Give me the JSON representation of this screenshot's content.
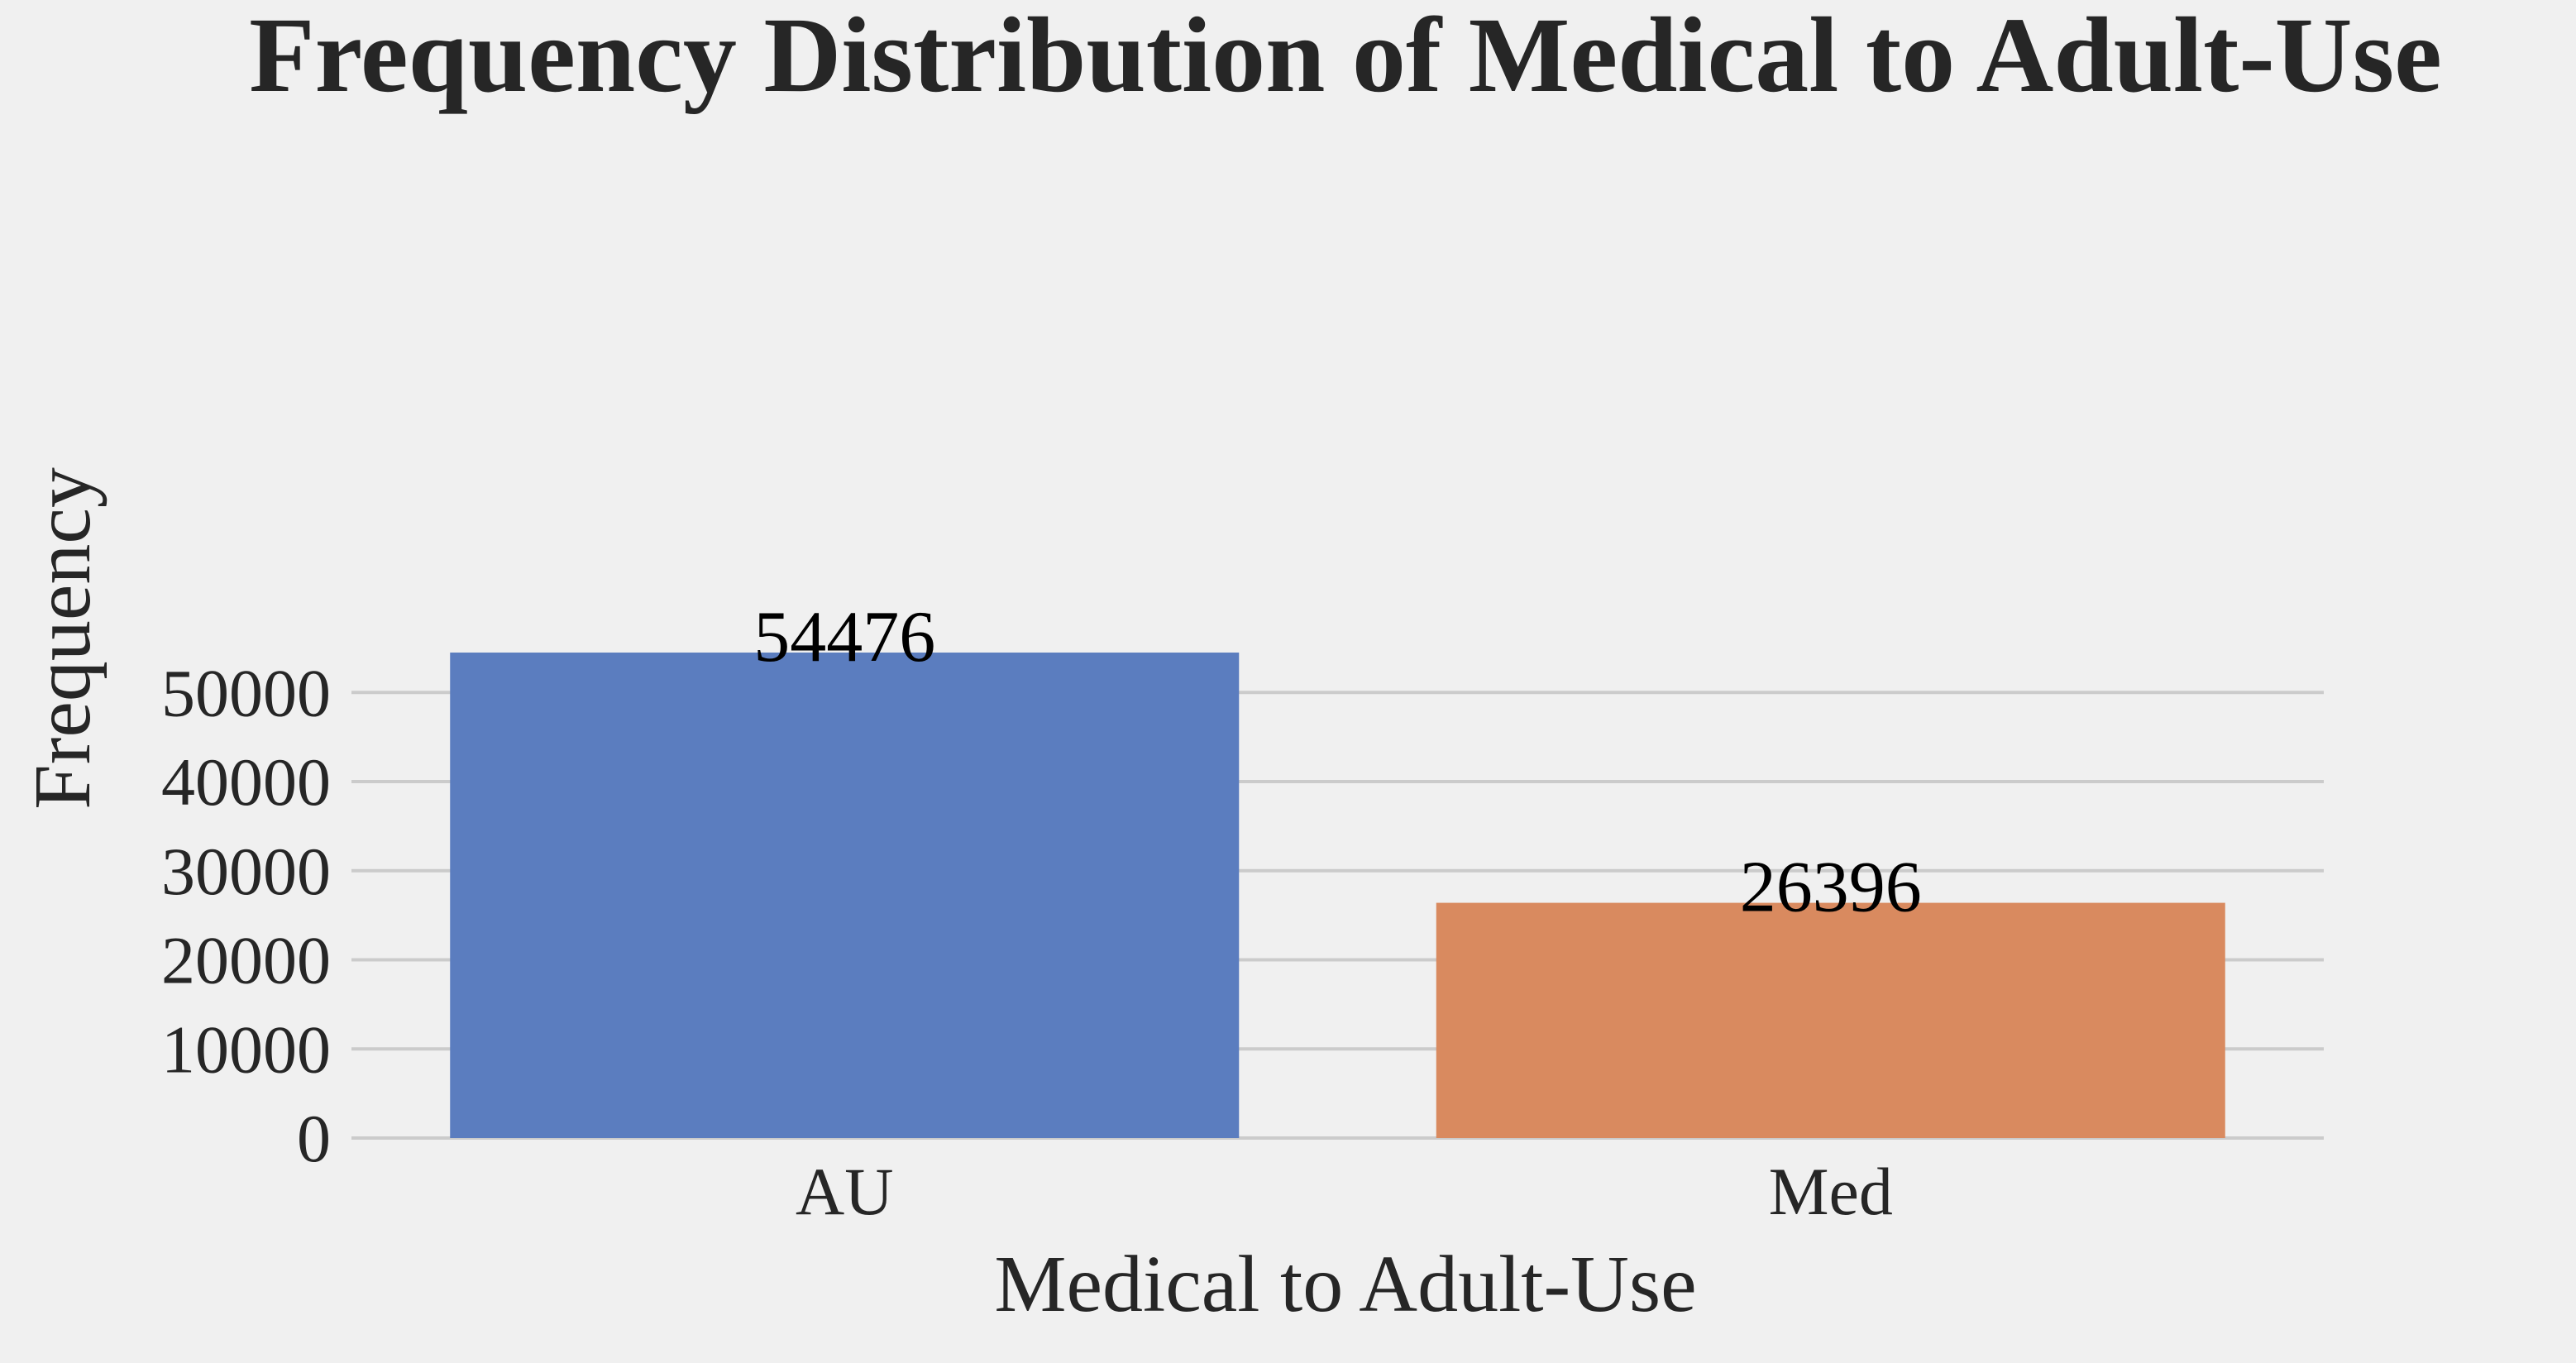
{
  "chart_data": {
    "type": "bar",
    "title": "Frequency Distribution of Medical to Adult-Use",
    "xlabel": "Medical to Adult-Use",
    "ylabel": "Frequency",
    "categories": [
      "AU",
      "Med"
    ],
    "values": [
      54476,
      26396
    ],
    "data_labels": [
      "54476",
      "26396"
    ],
    "colors": [
      "#5b7dbf",
      "#d98a5f"
    ],
    "ylim": [
      0,
      57200
    ],
    "yticks": [
      0,
      10000,
      20000,
      30000,
      40000,
      50000
    ],
    "ytick_labels": [
      "0",
      "10000",
      "20000",
      "30000",
      "40000",
      "50000"
    ],
    "grid": true,
    "grid_axis": "y",
    "background": "#f0f0f0",
    "grid_color": "#cbcbcb",
    "text_color": "#262626"
  }
}
